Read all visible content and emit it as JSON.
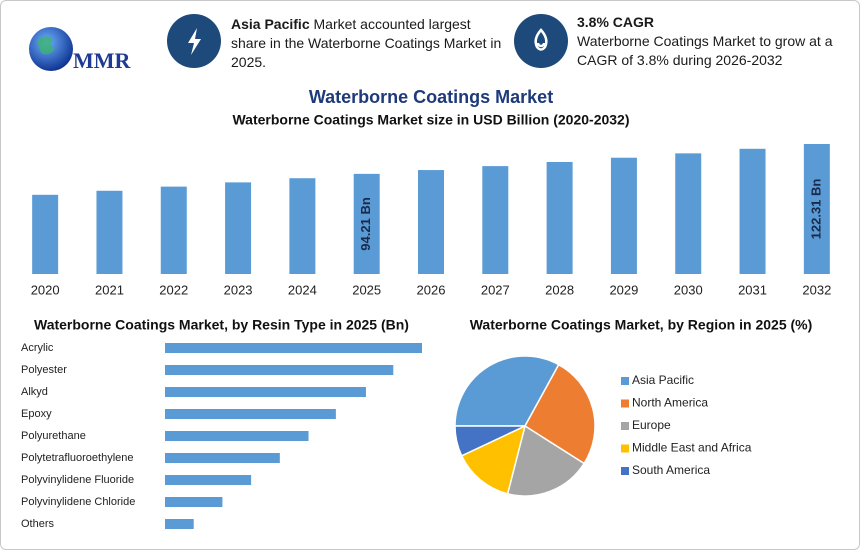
{
  "header": {
    "logo": "MMR",
    "left": {
      "bold": "Asia Pacific",
      "text": "Market accounted largest share in the Waterborne Coatings Market in 2025."
    },
    "right": {
      "bold": "3.8% CAGR",
      "text": "Waterborne Coatings Market to grow at a CAGR of 3.8% during 2026-2032"
    }
  },
  "title": "Waterborne Coatings Market",
  "chart_data": [
    {
      "type": "bar",
      "title": "Waterborne Coatings Market size in USD Billion (2020-2032)",
      "categories": [
        "2020",
        "2021",
        "2022",
        "2023",
        "2024",
        "2025",
        "2026",
        "2027",
        "2028",
        "2029",
        "2030",
        "2031",
        "2032"
      ],
      "values": [
        74.5,
        78.3,
        82.2,
        86.2,
        90.1,
        94.21,
        97.8,
        101.5,
        105.4,
        109.4,
        113.5,
        117.8,
        122.31
      ],
      "value_labels": [
        null,
        null,
        null,
        null,
        null,
        "94.21 Bn",
        null,
        null,
        null,
        null,
        null,
        null,
        "122.31 Bn"
      ],
      "color": "#5b9bd5"
    },
    {
      "type": "barh",
      "title": "Waterborne Coatings Market, by Resin Type in 2025 (Bn)",
      "categories": [
        "Acrylic",
        "Polyester",
        "Alkyd",
        "Epoxy",
        "Polyurethane",
        "Polytetrafluoroethylene",
        "Polyvinylidene Fluoride",
        "Polyvinylidene Chloride",
        "Others"
      ],
      "values": [
        18.8,
        16.7,
        14.7,
        12.5,
        10.5,
        8.4,
        6.3,
        4.2,
        2.1
      ],
      "color": "#5b9bd5"
    },
    {
      "type": "pie",
      "title": "Waterborne Coatings Market, by Region in 2025 (%)",
      "categories": [
        "Asia Pacific",
        "North America",
        "Europe",
        "Middle East and Africa",
        "South America"
      ],
      "values": [
        33,
        26,
        20,
        14,
        7
      ],
      "colors": [
        "#5b9bd5",
        "#ed7d31",
        "#a5a5a5",
        "#ffc000",
        "#4472c4"
      ]
    }
  ]
}
